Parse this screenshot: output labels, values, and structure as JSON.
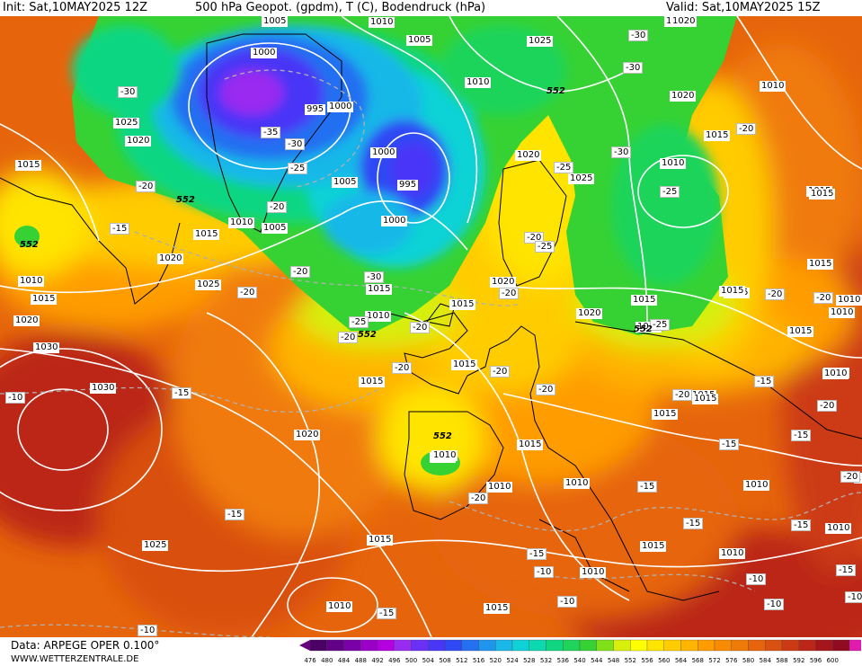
{
  "header": {
    "init": "Init: Sat,10MAY2025 12Z",
    "title": "500 hPa Geopot. (gpdm), T (C), Bodendruck (hPa)",
    "valid": "Valid: Sat,10MAY2025 15Z"
  },
  "footer": {
    "source": "Data: ARPEGE OPER 0.100°",
    "site": "WWW.WETTERZENTRALE.DE"
  },
  "colorbar": {
    "ticks": [
      "476",
      "480",
      "484",
      "488",
      "492",
      "496",
      "500",
      "504",
      "508",
      "512",
      "516",
      "520",
      "524",
      "528",
      "532",
      "536",
      "540",
      "544",
      "548",
      "552",
      "556",
      "560",
      "564",
      "568",
      "572",
      "576",
      "580",
      "584",
      "588",
      "592",
      "596",
      "600"
    ],
    "colors": [
      "#4b0066",
      "#620087",
      "#7a00a8",
      "#9b00c9",
      "#b400e0",
      "#9a2bf0",
      "#6b30f5",
      "#4a36f7",
      "#2f49f4",
      "#2370f1",
      "#1f95ee",
      "#19b8e8",
      "#10d2d6",
      "#0dd9b0",
      "#10d682",
      "#1ed45a",
      "#36d234",
      "#80e11a",
      "#d6f00b",
      "#ffff00",
      "#ffe400",
      "#ffcc00",
      "#ffb400",
      "#ff9c00",
      "#f98a04",
      "#f07a08",
      "#e6650c",
      "#d95010",
      "#cc3a14",
      "#bb2618",
      "#a5161c",
      "#900b20",
      "#e01bae"
    ],
    "left_arrow_color": "#6a0080",
    "right_arrow_color": "#e000a0"
  },
  "map": {
    "pressure_labels": [
      "1005",
      "1005",
      "1025",
      "1030",
      "1000",
      "1010",
      "1015",
      "1020",
      "1025",
      "1020",
      "1015",
      "995",
      "1000",
      "1015",
      "1010",
      "1020",
      "1010",
      "1015",
      "1000",
      "995",
      "1005",
      "1005",
      "1000",
      "1020",
      "1025",
      "1010",
      "1015",
      "1010",
      "1020",
      "1015",
      "1020",
      "1030",
      "1025",
      "1025",
      "1020",
      "1015",
      "1010",
      "1015",
      "1015",
      "1010",
      "1010",
      "1015",
      "1010",
      "1015",
      "1015",
      "1015",
      "1020",
      "1010",
      "1010",
      "1010",
      "1015",
      "1015",
      "1010",
      "1010",
      "1010",
      "1015",
      "1010",
      "1015",
      "1015",
      "1010",
      "1020",
      "1010",
      "1015",
      "1015",
      "1010",
      "1010",
      "1010",
      "1015",
      "1015",
      "1015",
      "1010"
    ],
    "temp_labels": [
      "-30",
      "-30",
      "-30",
      "-35",
      "-30",
      "-25",
      "-25",
      "-20",
      "-20",
      "-15",
      "-20",
      "-20",
      "-20",
      "-30",
      "-25",
      "-20",
      "-20",
      "-20",
      "-20",
      "-20",
      "-25",
      "-20",
      "-25",
      "-30",
      "-25",
      "-20",
      "-20",
      "-15",
      "-20",
      "-15",
      "-20",
      "-20",
      "-20",
      "-10",
      "-15",
      "-10",
      "-15",
      "-15",
      "-15",
      "-20",
      "-15",
      "-10",
      "-15",
      "-10",
      "-10",
      "-15",
      "-10",
      "-15",
      "-10",
      "-15"
    ],
    "geopot_552_labels": [
      "552",
      "552",
      "552",
      "552",
      "552",
      "552"
    ],
    "iso_color": "#ffffff",
    "coast_color": "#000000"
  }
}
